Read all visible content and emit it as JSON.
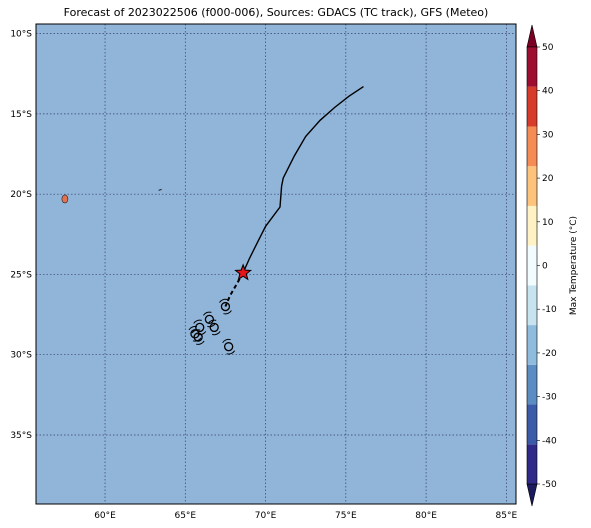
{
  "title": "Forecast of 2023022506 (f000-006), Sources: GDACS (TC track), GFS (Meteo)",
  "map": {
    "ocean_color": "#91b4d9",
    "grid": true,
    "lat_range": [
      -39.3,
      -9.4
    ],
    "lon_range": [
      55.7,
      85.6
    ],
    "lat_ticks": [
      {
        "value": -10,
        "label": "10°S"
      },
      {
        "value": -15,
        "label": "15°S"
      },
      {
        "value": -20,
        "label": "20°S"
      },
      {
        "value": -25,
        "label": "25°S"
      },
      {
        "value": -30,
        "label": "30°S"
      },
      {
        "value": -35,
        "label": "35°S"
      }
    ],
    "lon_ticks": [
      {
        "value": 60,
        "label": "60°E"
      },
      {
        "value": 65,
        "label": "65°E"
      },
      {
        "value": 70,
        "label": "70°E"
      },
      {
        "value": 75,
        "label": "75°E"
      },
      {
        "value": 80,
        "label": "80°E"
      },
      {
        "value": 85,
        "label": "85°E"
      }
    ],
    "track_solid": [
      [
        76.1,
        -13.3
      ],
      [
        75.2,
        -13.9
      ],
      [
        74.3,
        -14.6
      ],
      [
        73.4,
        -15.4
      ],
      [
        72.5,
        -16.4
      ],
      [
        71.8,
        -17.6
      ],
      [
        71.1,
        -19.0
      ],
      [
        71.0,
        -19.5
      ],
      [
        70.9,
        -20.8
      ],
      [
        70.0,
        -22.0
      ],
      [
        69.5,
        -23.0
      ],
      [
        69.0,
        -24.0
      ],
      [
        68.6,
        -24.9
      ]
    ],
    "track_dashed": [
      [
        68.6,
        -24.9
      ],
      [
        68.2,
        -25.6
      ],
      [
        67.8,
        -26.3
      ],
      [
        67.5,
        -27.0
      ]
    ],
    "current_position": [
      68.6,
      -24.9
    ],
    "symbol_positions": [
      [
        67.5,
        -27.0
      ],
      [
        66.5,
        -27.8
      ],
      [
        66.8,
        -28.3
      ],
      [
        65.9,
        -28.3
      ],
      [
        65.6,
        -28.7
      ],
      [
        65.8,
        -28.9
      ],
      [
        67.7,
        -29.5
      ]
    ],
    "islands": [
      [
        57.5,
        -20.3
      ],
      [
        63.4,
        -19.7
      ]
    ]
  },
  "colorbar": {
    "label": "Max Temperature (°C)",
    "min": -50,
    "max": 50,
    "ticks": [
      -50,
      -40,
      -30,
      -20,
      -10,
      0,
      10,
      20,
      30,
      40,
      50
    ],
    "colors": [
      "#2f2a87",
      "#3b5ba8",
      "#5b8cc2",
      "#8fbcdc",
      "#c6e3ef",
      "#f2fbfd",
      "#fff2c4",
      "#fdc37d",
      "#f58b55",
      "#d73b2b",
      "#9e0e31"
    ],
    "under_color": "#1b1a5e",
    "over_color": "#7a0024"
  }
}
